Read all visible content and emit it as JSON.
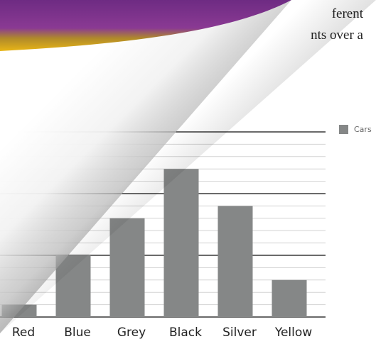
{
  "intro": {
    "line1": "ferent",
    "line2": "nts over a"
  },
  "colors": {
    "bar": "#858787",
    "grid_minor": "#d3d3d3",
    "grid_major": "#111111",
    "axis_label": "#222222",
    "banner_purple": "#7b2a85",
    "banner_gold": "#e6b419"
  },
  "chart_data": {
    "type": "bar",
    "categories": [
      "Red",
      "Blue",
      "Grey",
      "Black",
      "Silver",
      "Yellow"
    ],
    "series": [
      {
        "name": "Cars",
        "values": [
          1,
          5,
          8,
          12,
          9,
          3
        ]
      }
    ],
    "ylim": [
      0,
      15
    ],
    "grid": true,
    "legend_position": "right"
  },
  "legend": {
    "label": "Cars"
  }
}
